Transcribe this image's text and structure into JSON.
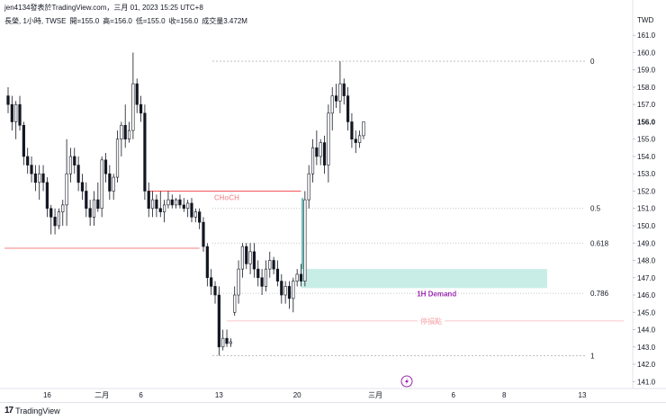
{
  "header": {
    "author_line": "jen4134發表於TradingView.com，三月 01, 2023 15:25 UTC+8",
    "symbol": "長榮, 1小時, TWSE",
    "open": "開=155.0",
    "high": "高=156.0",
    "low": "低=155.0",
    "close": "收=156.0",
    "volume": "成交量3.472M"
  },
  "footer": {
    "logo": "17",
    "brand": "TradingView"
  },
  "colors": {
    "up": "#131722",
    "down": "#131722",
    "choch_line": "#f7a3a7",
    "choch_text": "#f7a3a7",
    "red_line": "#f2555a",
    "stop_line": "#f7b7b9",
    "demand_zone": "#c8ede7",
    "demand_text": "#9c27b0",
    "fib_line": "#b2b5be",
    "flash_icon": "#9c27b0",
    "green_bar": "#26a69a"
  },
  "icons": {
    "bolt": "flash-icon"
  },
  "chart_data": {
    "type": "candlestick",
    "currency": "TWD",
    "ylim": [
      140.6,
      162.1
    ],
    "y_ticks": [
      141.0,
      142.0,
      143.0,
      144.0,
      145.0,
      146.0,
      147.0,
      148.0,
      149.0,
      150.0,
      151.0,
      152.0,
      153.0,
      154.0,
      155.0,
      157.0,
      158.0,
      159.0,
      160.0,
      161.0
    ],
    "y_tick_labels": [
      "141.0",
      "142.0",
      "143.0",
      "144.0",
      "145.0",
      "146.0",
      "147.0",
      "148.0",
      "149.0",
      "150.0",
      "151.0",
      "152.0",
      "153.0",
      "154.0",
      "155.0",
      "157.0",
      "158.0",
      "159.0",
      "160.0",
      "161.0"
    ],
    "last_price": 156.0,
    "last_price_label": "156.0",
    "x_ticks": [
      {
        "label": "16",
        "bar": 10
      },
      {
        "label": "二月",
        "bar": 24
      },
      {
        "label": "6",
        "bar": 34
      },
      {
        "label": "13",
        "bar": 54
      },
      {
        "label": "20",
        "bar": 74
      },
      {
        "label": "三月",
        "bar": 94
      },
      {
        "label": "6",
        "bar": 114
      },
      {
        "label": "8",
        "bar": 127
      },
      {
        "label": "13",
        "bar": 147
      }
    ],
    "candles": [
      {
        "o": 157.5,
        "h": 158.0,
        "l": 156.5,
        "c": 157.0
      },
      {
        "o": 157.0,
        "h": 157.5,
        "l": 155.5,
        "c": 156.0
      },
      {
        "o": 156.0,
        "h": 157.2,
        "l": 155.0,
        "c": 157.0
      },
      {
        "o": 157.0,
        "h": 157.5,
        "l": 155.5,
        "c": 155.8
      },
      {
        "o": 155.8,
        "h": 156.0,
        "l": 153.5,
        "c": 154.0
      },
      {
        "o": 154.0,
        "h": 154.5,
        "l": 153.0,
        "c": 153.5
      },
      {
        "o": 153.5,
        "h": 154.0,
        "l": 152.5,
        "c": 153.0
      },
      {
        "o": 153.0,
        "h": 153.5,
        "l": 152.0,
        "c": 152.5
      },
      {
        "o": 152.5,
        "h": 153.5,
        "l": 151.5,
        "c": 153.0
      },
      {
        "o": 153.0,
        "h": 153.5,
        "l": 152.0,
        "c": 152.5
      },
      {
        "o": 152.5,
        "h": 152.8,
        "l": 150.5,
        "c": 151.0
      },
      {
        "o": 151.0,
        "h": 151.2,
        "l": 149.5,
        "c": 150.5
      },
      {
        "o": 150.5,
        "h": 151.0,
        "l": 149.5,
        "c": 150.0
      },
      {
        "o": 150.0,
        "h": 151.0,
        "l": 149.8,
        "c": 150.8
      },
      {
        "o": 150.8,
        "h": 151.5,
        "l": 150.0,
        "c": 151.2
      },
      {
        "o": 151.2,
        "h": 155.0,
        "l": 150.0,
        "c": 153.0
      },
      {
        "o": 153.0,
        "h": 154.5,
        "l": 152.5,
        "c": 154.0
      },
      {
        "o": 154.0,
        "h": 154.5,
        "l": 153.0,
        "c": 153.5
      },
      {
        "o": 153.5,
        "h": 154.0,
        "l": 152.0,
        "c": 152.5
      },
      {
        "o": 152.5,
        "h": 153.0,
        "l": 151.5,
        "c": 152.0
      },
      {
        "o": 152.0,
        "h": 152.5,
        "l": 150.5,
        "c": 151.0
      },
      {
        "o": 151.0,
        "h": 151.5,
        "l": 150.0,
        "c": 150.5
      },
      {
        "o": 150.5,
        "h": 152.0,
        "l": 150.0,
        "c": 151.5
      },
      {
        "o": 151.5,
        "h": 152.5,
        "l": 150.8,
        "c": 151.0
      },
      {
        "o": 151.0,
        "h": 154.0,
        "l": 150.5,
        "c": 153.8
      },
      {
        "o": 153.8,
        "h": 154.2,
        "l": 152.5,
        "c": 153.0
      },
      {
        "o": 153.0,
        "h": 153.5,
        "l": 151.5,
        "c": 152.0
      },
      {
        "o": 152.0,
        "h": 153.0,
        "l": 151.5,
        "c": 152.8
      },
      {
        "o": 152.8,
        "h": 155.5,
        "l": 152.5,
        "c": 155.0
      },
      {
        "o": 155.0,
        "h": 156.0,
        "l": 154.0,
        "c": 155.8
      },
      {
        "o": 155.8,
        "h": 157.0,
        "l": 154.5,
        "c": 155.0
      },
      {
        "o": 155.0,
        "h": 156.0,
        "l": 154.8,
        "c": 155.5
      },
      {
        "o": 155.5,
        "h": 160.0,
        "l": 155.0,
        "c": 158.2
      },
      {
        "o": 158.2,
        "h": 158.5,
        "l": 156.5,
        "c": 157.0
      },
      {
        "o": 157.0,
        "h": 157.5,
        "l": 156.0,
        "c": 156.5
      },
      {
        "o": 156.5,
        "h": 157.0,
        "l": 151.5,
        "c": 152.0
      },
      {
        "o": 152.0,
        "h": 152.5,
        "l": 150.5,
        "c": 151.0
      },
      {
        "o": 151.0,
        "h": 152.0,
        "l": 150.5,
        "c": 151.5
      },
      {
        "o": 151.5,
        "h": 151.8,
        "l": 150.5,
        "c": 151.0
      },
      {
        "o": 151.0,
        "h": 152.0,
        "l": 150.5,
        "c": 150.8
      },
      {
        "o": 150.8,
        "h": 151.5,
        "l": 150.2,
        "c": 151.2
      },
      {
        "o": 151.2,
        "h": 152.0,
        "l": 151.0,
        "c": 151.5
      },
      {
        "o": 151.5,
        "h": 151.8,
        "l": 151.0,
        "c": 151.2
      },
      {
        "o": 151.2,
        "h": 151.6,
        "l": 151.0,
        "c": 151.5
      },
      {
        "o": 151.5,
        "h": 151.8,
        "l": 151.0,
        "c": 151.2
      },
      {
        "o": 151.2,
        "h": 151.6,
        "l": 150.8,
        "c": 151.0
      },
      {
        "o": 151.0,
        "h": 151.5,
        "l": 150.5,
        "c": 151.3
      },
      {
        "o": 151.3,
        "h": 151.6,
        "l": 150.2,
        "c": 150.5
      },
      {
        "o": 150.5,
        "h": 151.0,
        "l": 150.2,
        "c": 150.8
      },
      {
        "o": 150.8,
        "h": 151.0,
        "l": 149.8,
        "c": 150.2
      },
      {
        "o": 150.2,
        "h": 150.5,
        "l": 148.5,
        "c": 148.8
      },
      {
        "o": 148.8,
        "h": 149.0,
        "l": 146.5,
        "c": 147.0
      },
      {
        "o": 147.0,
        "h": 147.5,
        "l": 146.0,
        "c": 146.5
      },
      {
        "o": 146.5,
        "h": 146.8,
        "l": 145.5,
        "c": 146.0
      },
      {
        "o": 146.0,
        "h": 146.5,
        "l": 142.5,
        "c": 143.0
      },
      {
        "o": 143.0,
        "h": 144.0,
        "l": 142.8,
        "c": 143.5
      },
      {
        "o": 143.5,
        "h": 144.0,
        "l": 143.0,
        "c": 143.2
      },
      {
        "o": 143.2,
        "h": 143.5,
        "l": 143.0,
        "c": 143.3
      },
      {
        "o": 145.0,
        "h": 146.5,
        "l": 144.8,
        "c": 146.0
      },
      {
        "o": 146.0,
        "h": 148.0,
        "l": 145.5,
        "c": 147.5
      },
      {
        "o": 147.5,
        "h": 149.0,
        "l": 147.0,
        "c": 148.8
      },
      {
        "o": 148.8,
        "h": 149.0,
        "l": 147.5,
        "c": 147.8
      },
      {
        "o": 147.8,
        "h": 149.0,
        "l": 147.2,
        "c": 148.5
      },
      {
        "o": 148.5,
        "h": 149.0,
        "l": 147.0,
        "c": 147.5
      },
      {
        "o": 147.5,
        "h": 148.0,
        "l": 146.5,
        "c": 147.0
      },
      {
        "o": 147.0,
        "h": 147.5,
        "l": 146.0,
        "c": 146.5
      },
      {
        "o": 146.5,
        "h": 148.0,
        "l": 146.2,
        "c": 147.5
      },
      {
        "o": 147.5,
        "h": 148.5,
        "l": 147.0,
        "c": 148.0
      },
      {
        "o": 148.0,
        "h": 148.2,
        "l": 147.2,
        "c": 147.5
      },
      {
        "o": 147.5,
        "h": 148.0,
        "l": 146.5,
        "c": 146.8
      },
      {
        "o": 146.8,
        "h": 147.2,
        "l": 145.5,
        "c": 146.0
      },
      {
        "o": 146.0,
        "h": 146.8,
        "l": 145.5,
        "c": 146.5
      },
      {
        "o": 146.5,
        "h": 146.8,
        "l": 145.2,
        "c": 145.8
      },
      {
        "o": 145.8,
        "h": 147.0,
        "l": 145.0,
        "c": 146.8
      },
      {
        "o": 146.8,
        "h": 147.5,
        "l": 146.5,
        "c": 147.2
      },
      {
        "o": 147.2,
        "h": 147.8,
        "l": 146.5,
        "c": 146.8
      },
      {
        "o": 146.8,
        "h": 152.0,
        "l": 146.5,
        "c": 151.5
      },
      {
        "o": 151.5,
        "h": 153.5,
        "l": 151.0,
        "c": 153.0
      },
      {
        "o": 153.0,
        "h": 155.0,
        "l": 152.5,
        "c": 154.5
      },
      {
        "o": 154.5,
        "h": 155.5,
        "l": 153.5,
        "c": 154.0
      },
      {
        "o": 154.0,
        "h": 155.0,
        "l": 153.5,
        "c": 154.8
      },
      {
        "o": 154.8,
        "h": 155.2,
        "l": 153.0,
        "c": 153.5
      },
      {
        "o": 153.5,
        "h": 157.0,
        "l": 152.5,
        "c": 156.5
      },
      {
        "o": 156.5,
        "h": 158.0,
        "l": 155.5,
        "c": 157.5
      },
      {
        "o": 157.5,
        "h": 158.2,
        "l": 156.8,
        "c": 157.2
      },
      {
        "o": 157.2,
        "h": 159.5,
        "l": 156.5,
        "c": 158.2
      },
      {
        "o": 158.2,
        "h": 158.5,
        "l": 157.0,
        "c": 157.5
      },
      {
        "o": 157.5,
        "h": 158.0,
        "l": 155.5,
        "c": 156.0
      },
      {
        "o": 156.0,
        "h": 156.5,
        "l": 154.5,
        "c": 155.0
      },
      {
        "o": 155.0,
        "h": 155.5,
        "l": 154.2,
        "c": 154.8
      },
      {
        "o": 154.8,
        "h": 155.5,
        "l": 154.5,
        "c": 155.2
      },
      {
        "o": 155.2,
        "h": 156.0,
        "l": 155.0,
        "c": 156.0
      }
    ],
    "fib_levels": [
      {
        "label": "0",
        "value": 159.5
      },
      {
        "label": "0.5",
        "value": 151.0
      },
      {
        "label": "0.618",
        "value": 149.0
      },
      {
        "label": "0.786",
        "value": 146.1
      },
      {
        "label": "1",
        "value": 142.5
      }
    ],
    "choch": {
      "label": "CHoCH",
      "value": 152.0,
      "from_bar": 36,
      "to_bar": 75
    },
    "red_line": {
      "value": 148.7,
      "from_bar": 0,
      "to_bar": 49
    },
    "demand_zone": {
      "label": "1H Demand",
      "low": 146.4,
      "high": 147.5,
      "from_bar": 75,
      "to_bar": 138
    },
    "stop_line": {
      "label": "停損點",
      "value": 144.5,
      "from_bar": 55,
      "to_bar": 141
    }
  }
}
